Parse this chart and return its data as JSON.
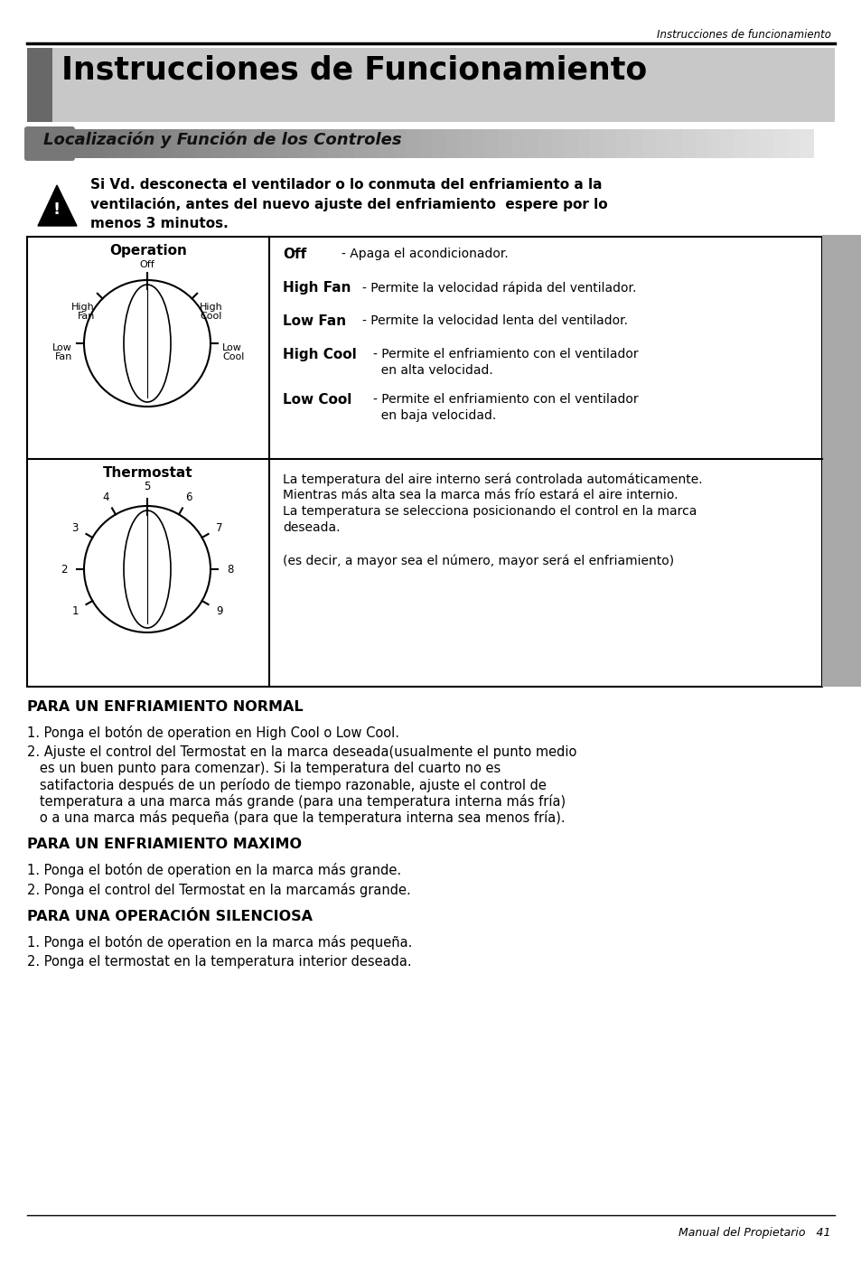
{
  "page_header": "Instrucciones de funcionamiento",
  "main_title": "Instrucciones de Funcionamiento",
  "subtitle": "Localización y Función de los Controles",
  "warning_text": "Si Vd. desconecta el ventilador o lo conmuta del enfriamiento a la\nventilación, antes del nuevo ajuste del enfriamiento  espere por lo\nmenos 3 minutos.",
  "operation_label": "Operation",
  "thermostat_label": "Thermostat",
  "thermostat_text_lines": [
    "La temperatura del aire interno será controlada automáticamente.",
    "Mientras más alta sea la marca más frío estará el aire internio.",
    "La temperatura se selecciona posicionando el control en la marca",
    "deseada.",
    "",
    "(es decir, a mayor sea el número, mayor será el enfriamiento)"
  ],
  "section1_title": "PARA UN ENFRIAMIENTO NORMAL",
  "section1_item1": "1. Ponga el botón de operation en High Cool o Low Cool.",
  "section1_item2a": "2. Ajuste el control del Termostat en la marca deseada(usualmente el punto medio",
  "section1_item2b": "   es un buen punto para comenzar). Si la temperatura del cuarto no es",
  "section1_item2c": "   satifactoria después de un período de tiempo razonable, ajuste el control de",
  "section1_item2d": "   temperatura a una marca más grande (para una temperatura interna más fría)",
  "section1_item2e": "   o a una marca más pequeña (para que la temperatura interna sea menos fría).",
  "section2_title": "PARA UN ENFRIAMIENTO MAXIMO",
  "section2_item1": "1. Ponga el botón de operation en la marca más grande.",
  "section2_item2": "2. Ponga el control del Termostat en la marcamás grande.",
  "section3_title": "PARA UNA OPERACIÓN SILENCIOSA",
  "section3_item1": "1. Ponga el botón de operation en la marca más pequeña.",
  "section3_item2": "2. Ponga el termostat en la temperatura interior deseada.",
  "footer": "Manual del Propietario   41",
  "bg_color": "#ffffff",
  "title_bg": "#c8c8c8",
  "title_dark": "#686868",
  "subtitle_bg_left": "#888888",
  "subtitle_bg_right": "#e8e8e8",
  "sidebar_color": "#a8a8a8"
}
